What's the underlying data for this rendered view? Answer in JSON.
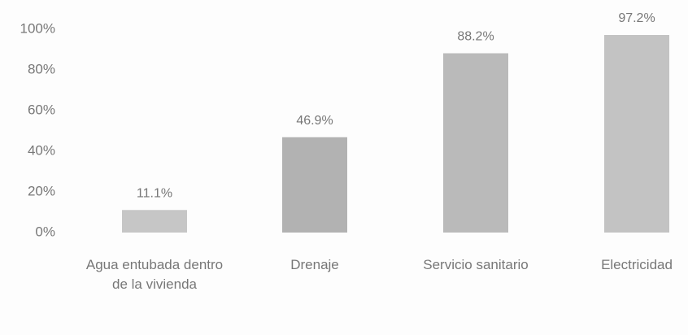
{
  "chart_data": {
    "type": "bar",
    "categories": [
      "Agua entubada dentro de la vivienda",
      "Drenaje",
      "Servicio sanitario",
      "Electricidad"
    ],
    "values": [
      11.1,
      46.9,
      88.2,
      97.2
    ],
    "value_labels": [
      "11.1%",
      "46.9%",
      "88.2%",
      "97.2%"
    ],
    "colors": [
      "#c6c6c6",
      "#b2b2b2",
      "#bababa",
      "#c3c3c3"
    ],
    "ylim": [
      0,
      100
    ],
    "yticks": [
      {
        "value": 0,
        "label": "0%"
      },
      {
        "value": 20,
        "label": "20%"
      },
      {
        "value": 40,
        "label": "40%"
      },
      {
        "value": 60,
        "label": "60%"
      },
      {
        "value": 80,
        "label": "80%"
      },
      {
        "value": 100,
        "label": "100%"
      }
    ],
    "grid": false
  }
}
